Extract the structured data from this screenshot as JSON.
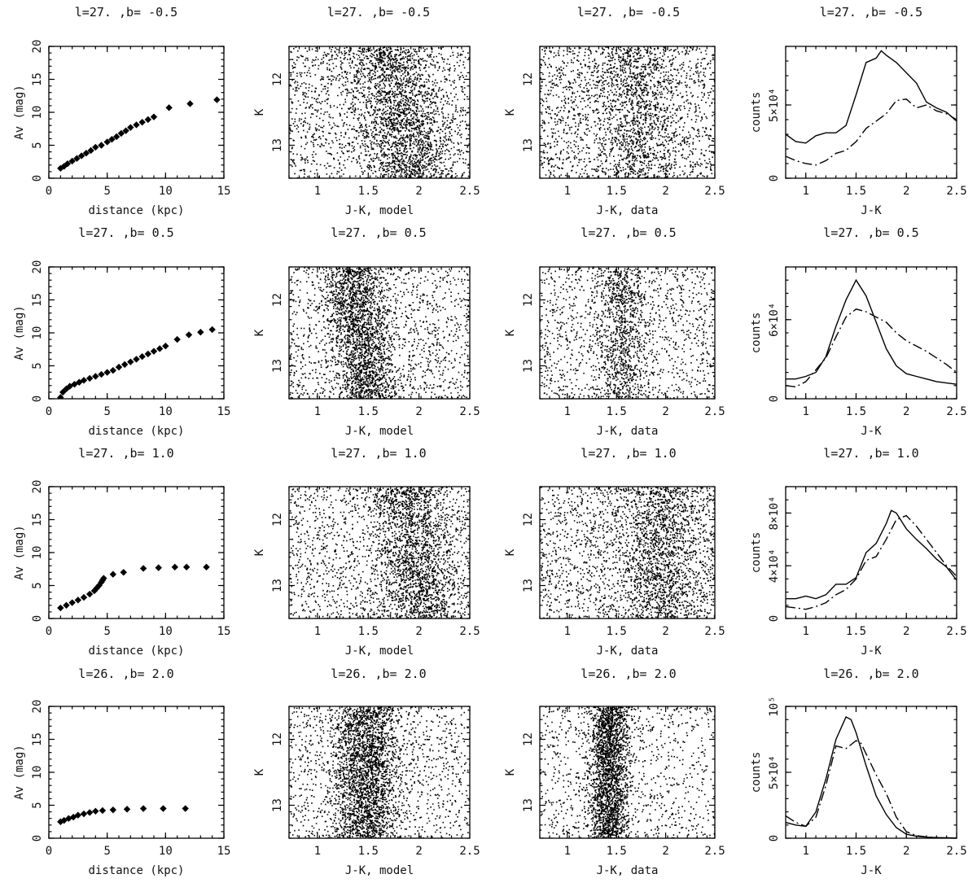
{
  "figure": {
    "rows": [
      {
        "title": "l=27. ,b= -0.5",
        "extinction": {
          "type": "scatter",
          "xlabel": "distance (kpc)",
          "ylabel": "Av (mag)",
          "xlim": [
            0,
            15
          ],
          "ylim": [
            0,
            20
          ],
          "xticks": [
            "0",
            "5",
            "10",
            "15"
          ],
          "yticks": [
            "0",
            "5",
            "10",
            "15",
            "20"
          ],
          "x": [
            1.0,
            1.3,
            1.6,
            2.0,
            2.4,
            2.8,
            3.2,
            3.6,
            4.0,
            4.5,
            5.0,
            5.4,
            5.8,
            6.2,
            6.6,
            7.0,
            7.5,
            8.0,
            8.5,
            9.0,
            10.3,
            12.1,
            14.4
          ],
          "y": [
            1.5,
            1.8,
            2.2,
            2.6,
            3.0,
            3.4,
            3.8,
            4.2,
            4.7,
            5.0,
            5.5,
            5.9,
            6.3,
            6.8,
            7.2,
            7.7,
            8.1,
            8.5,
            8.9,
            9.3,
            10.7,
            11.3,
            11.9
          ]
        },
        "cmd_model": {
          "type": "scatter",
          "xlabel": "J-K, model",
          "ylabel": "K",
          "xlim": [
            0.72,
            2.5
          ],
          "ylim": [
            13.5,
            11.5
          ],
          "xticks": [
            "1",
            "1.5",
            "2",
            "2.5"
          ],
          "yticks": [
            "12",
            "13"
          ],
          "center": 1.8,
          "spread": 0.22,
          "tilt": 0.12,
          "background": 0.45,
          "n": 3200
        },
        "cmd_data": {
          "type": "scatter",
          "xlabel": "J-K, data",
          "ylabel": "K",
          "xlim": [
            0.72,
            2.5
          ],
          "ylim": [
            13.5,
            11.5
          ],
          "xticks": [
            "1",
            "1.5",
            "2",
            "2.5"
          ],
          "yticks": [
            "12",
            "13"
          ],
          "center": 1.7,
          "spread": 0.22,
          "tilt": 0.04,
          "background": 0.6,
          "n": 2500
        },
        "histogram": {
          "type": "line",
          "xlabel": "J-K",
          "ylabel": "counts",
          "xlim": [
            0.8,
            2.5
          ],
          "ylim": [
            0,
            90000
          ],
          "xticks": [
            "1",
            "1.5",
            "2",
            "2.5"
          ],
          "yticks": [
            "0",
            "5×10⁴"
          ],
          "ytick_values": [
            0,
            50000
          ],
          "series": [
            {
              "x": [
                0.8,
                0.9,
                1.0,
                1.1,
                1.2,
                1.3,
                1.4,
                1.5,
                1.6,
                1.7,
                1.75,
                1.8,
                1.9,
                2.0,
                2.1,
                2.2,
                2.3,
                2.4,
                2.5
              ],
              "values": [
                30000,
                25000,
                24000,
                29000,
                31000,
                31000,
                36000,
                57000,
                79000,
                82000,
                87000,
                84000,
                79000,
                72000,
                65000,
                52000,
                48000,
                45000,
                39000
              ]
            },
            {
              "x": [
                0.8,
                0.9,
                1.0,
                1.1,
                1.2,
                1.3,
                1.4,
                1.5,
                1.6,
                1.7,
                1.8,
                1.9,
                2.0,
                2.1,
                2.2,
                2.3,
                2.4,
                2.5
              ],
              "values": [
                15000,
                12000,
                10000,
                9000,
                12000,
                17000,
                19000,
                25000,
                34000,
                39000,
                44000,
                53000,
                54000,
                48000,
                50000,
                46000,
                44000,
                40000
              ]
            }
          ]
        }
      },
      {
        "title": "l=27. ,b=  0.5",
        "extinction": {
          "type": "scatter",
          "xlabel": "distance (kpc)",
          "ylabel": "Av (mag)",
          "xlim": [
            0,
            15
          ],
          "ylim": [
            0,
            20
          ],
          "xticks": [
            "0",
            "5",
            "10",
            "15"
          ],
          "yticks": [
            "0",
            "5",
            "10",
            "15",
            "20"
          ],
          "x": [
            1.0,
            1.2,
            1.5,
            1.8,
            2.2,
            2.6,
            3.0,
            3.5,
            4.0,
            4.5,
            5.0,
            5.5,
            6.0,
            6.5,
            7.0,
            7.5,
            8.0,
            8.5,
            9.0,
            9.5,
            10.0,
            11.0,
            12.0,
            13.0,
            14.0
          ],
          "y": [
            0.2,
            1.0,
            1.5,
            1.9,
            2.2,
            2.5,
            2.8,
            3.1,
            3.4,
            3.7,
            4.0,
            4.3,
            4.8,
            5.2,
            5.6,
            6.0,
            6.4,
            6.8,
            7.2,
            7.6,
            8.0,
            9.0,
            9.7,
            10.1,
            10.5
          ]
        },
        "cmd_model": {
          "type": "scatter",
          "xlabel": "J-K, model",
          "ylabel": "K",
          "xlim": [
            0.72,
            2.5
          ],
          "ylim": [
            13.5,
            11.5
          ],
          "xticks": [
            "1",
            "1.5",
            "2",
            "2.5"
          ],
          "yticks": [
            "12",
            "13"
          ],
          "center": 1.42,
          "spread": 0.15,
          "tilt": 0.1,
          "background": 0.4,
          "n": 3200
        },
        "cmd_data": {
          "type": "scatter",
          "xlabel": "J-K, data",
          "ylabel": "K",
          "xlim": [
            0.72,
            2.5
          ],
          "ylim": [
            13.5,
            11.5
          ],
          "xticks": [
            "1",
            "1.5",
            "2",
            "2.5"
          ],
          "yticks": [
            "12",
            "13"
          ],
          "center": 1.55,
          "spread": 0.14,
          "tilt": 0.0,
          "background": 0.6,
          "n": 2000
        },
        "histogram": {
          "type": "line",
          "xlabel": "J-K",
          "ylabel": "counts",
          "xlim": [
            0.8,
            2.5
          ],
          "ylim": [
            0,
            100000
          ],
          "xticks": [
            "1",
            "1.5",
            "2",
            "2.5"
          ],
          "yticks": [
            "0",
            "6×10⁴"
          ],
          "ytick_values": [
            0,
            60000
          ],
          "series": [
            {
              "x": [
                0.8,
                0.9,
                1.0,
                1.1,
                1.2,
                1.3,
                1.4,
                1.5,
                1.6,
                1.7,
                1.8,
                1.9,
                2.0,
                2.1,
                2.2,
                2.3,
                2.4,
                2.5
              ],
              "values": [
                15000,
                15000,
                17000,
                20000,
                32000,
                55000,
                75000,
                90000,
                78000,
                58000,
                38000,
                25000,
                19000,
                17000,
                15000,
                13000,
                12000,
                11000
              ]
            },
            {
              "x": [
                0.8,
                0.9,
                1.0,
                1.1,
                1.2,
                1.3,
                1.4,
                1.5,
                1.6,
                1.7,
                1.8,
                1.9,
                2.0,
                2.1,
                2.2,
                2.3,
                2.4,
                2.5
              ],
              "values": [
                10000,
                9000,
                13000,
                22000,
                31000,
                47000,
                62000,
                68000,
                66000,
                62000,
                58000,
                50000,
                44000,
                40000,
                36000,
                31000,
                26000,
                20000
              ]
            }
          ]
        }
      },
      {
        "title": "l=27. ,b=  1.0",
        "extinction": {
          "type": "scatter",
          "xlabel": "distance (kpc)",
          "ylabel": "Av (mag)",
          "xlim": [
            0,
            15
          ],
          "ylim": [
            0,
            20
          ],
          "xticks": [
            "0",
            "5",
            "10",
            "15"
          ],
          "yticks": [
            "0",
            "5",
            "10",
            "15",
            "20"
          ],
          "x": [
            1.0,
            1.5,
            2.0,
            2.5,
            3.0,
            3.5,
            3.9,
            4.1,
            4.3,
            4.5,
            4.6,
            4.7,
            5.5,
            6.4,
            8.1,
            9.4,
            10.8,
            11.8,
            13.5
          ],
          "y": [
            1.6,
            2.0,
            2.4,
            2.8,
            3.2,
            3.7,
            4.2,
            4.6,
            5.0,
            5.5,
            5.8,
            6.1,
            6.7,
            7.0,
            7.6,
            7.7,
            7.8,
            7.8,
            7.8
          ]
        },
        "cmd_model": {
          "type": "scatter",
          "xlabel": "J-K, model",
          "ylabel": "K",
          "xlim": [
            0.72,
            2.5
          ],
          "ylim": [
            13.5,
            11.5
          ],
          "xticks": [
            "1",
            "1.5",
            "2",
            "2.5"
          ],
          "yticks": [
            "12",
            "13"
          ],
          "center": 1.95,
          "spread": 0.2,
          "tilt": 0.1,
          "background": 0.45,
          "n": 3000
        },
        "cmd_data": {
          "type": "scatter",
          "xlabel": "J-K, data",
          "ylabel": "K",
          "xlim": [
            0.72,
            2.5
          ],
          "ylim": [
            13.5,
            11.5
          ],
          "xticks": [
            "1",
            "1.5",
            "2",
            "2.5"
          ],
          "yticks": [
            "12",
            "13"
          ],
          "center": 1.95,
          "spread": 0.22,
          "tilt": 0.0,
          "background": 0.55,
          "n": 2800
        },
        "histogram": {
          "type": "line",
          "xlabel": "J-K",
          "ylabel": "counts",
          "xlim": [
            0.8,
            2.5
          ],
          "ylim": [
            0,
            100000
          ],
          "xticks": [
            "1",
            "1.5",
            "2",
            "2.5"
          ],
          "yticks": [
            "0",
            "4×10⁴",
            "8×10⁴"
          ],
          "ytick_values": [
            0,
            40000,
            80000
          ],
          "series": [
            {
              "x": [
                0.8,
                0.9,
                1.0,
                1.1,
                1.2,
                1.3,
                1.4,
                1.5,
                1.6,
                1.7,
                1.8,
                1.85,
                1.9,
                2.0,
                2.1,
                2.2,
                2.3,
                2.4,
                2.5
              ],
              "values": [
                15000,
                15000,
                17000,
                15000,
                18000,
                26000,
                26000,
                31000,
                50000,
                57000,
                72000,
                82000,
                80000,
                68000,
                60000,
                53000,
                45000,
                39000,
                29000
              ]
            },
            {
              "x": [
                0.8,
                0.9,
                1.0,
                1.1,
                1.2,
                1.3,
                1.4,
                1.5,
                1.6,
                1.7,
                1.8,
                1.9,
                2.0,
                2.1,
                2.2,
                2.3,
                2.4,
                2.5
              ],
              "values": [
                9000,
                8000,
                7000,
                9000,
                12000,
                18000,
                22000,
                30000,
                44000,
                47000,
                60000,
                75000,
                78000,
                70000,
                60000,
                50000,
                40000,
                32000
              ]
            }
          ]
        }
      },
      {
        "title": "l=26. ,b=  2.0",
        "extinction": {
          "type": "scatter",
          "xlabel": "distance (kpc)",
          "ylabel": "Av (mag)",
          "xlim": [
            0,
            15
          ],
          "ylim": [
            0,
            20
          ],
          "xticks": [
            "0",
            "5",
            "10",
            "15"
          ],
          "yticks": [
            "0",
            "5",
            "10",
            "15",
            "20"
          ],
          "x": [
            1.0,
            1.3,
            1.7,
            2.1,
            2.5,
            3.0,
            3.5,
            4.0,
            4.6,
            5.5,
            6.7,
            8.1,
            9.8,
            11.7
          ],
          "y": [
            2.5,
            2.7,
            3.0,
            3.2,
            3.5,
            3.7,
            3.9,
            4.1,
            4.2,
            4.3,
            4.4,
            4.5,
            4.5,
            4.5
          ]
        },
        "cmd_model": {
          "type": "scatter",
          "xlabel": "J-K, model",
          "ylabel": "K",
          "xlim": [
            0.72,
            2.5
          ],
          "ylim": [
            13.5,
            11.5
          ],
          "xticks": [
            "1",
            "1.5",
            "2",
            "2.5"
          ],
          "yticks": [
            "12",
            "13"
          ],
          "center": 1.47,
          "spread": 0.17,
          "tilt": 0.0,
          "background": 0.3,
          "n": 3400
        },
        "cmd_data": {
          "type": "scatter",
          "xlabel": "J-K, data",
          "ylabel": "K",
          "xlim": [
            0.72,
            2.5
          ],
          "ylim": [
            13.5,
            11.5
          ],
          "xticks": [
            "1",
            "1.5",
            "2",
            "2.5"
          ],
          "yticks": [
            "12",
            "13"
          ],
          "center": 1.42,
          "spread": 0.1,
          "tilt": 0.0,
          "background": 0.3,
          "n": 3000
        },
        "histogram": {
          "type": "line",
          "xlabel": "J-K",
          "ylabel": "counts",
          "xlim": [
            0.8,
            2.5
          ],
          "ylim": [
            0,
            100000
          ],
          "xticks": [
            "1",
            "1.5",
            "2",
            "2.5"
          ],
          "yticks": [
            "0",
            "5×10⁴",
            "10⁵"
          ],
          "ytick_values": [
            0,
            50000,
            100000
          ],
          "series": [
            {
              "x": [
                0.8,
                0.9,
                1.0,
                1.1,
                1.2,
                1.3,
                1.4,
                1.45,
                1.5,
                1.6,
                1.7,
                1.8,
                1.9,
                2.0,
                2.1,
                2.2,
                2.3,
                2.4,
                2.5
              ],
              "values": [
                12000,
                10000,
                9000,
                20000,
                45000,
                75000,
                92000,
                90000,
                80000,
                55000,
                32000,
                18000,
                8000,
                3000,
                1500,
                800,
                500,
                300,
                200
              ]
            },
            {
              "x": [
                0.8,
                0.9,
                1.0,
                1.1,
                1.2,
                1.3,
                1.4,
                1.5,
                1.55,
                1.6,
                1.7,
                1.8,
                1.9,
                2.0,
                2.1,
                2.2,
                2.3
              ],
              "values": [
                17000,
                12000,
                9000,
                16000,
                40000,
                70000,
                68000,
                74000,
                72000,
                64000,
                48000,
                34000,
                16000,
                5000,
                2000,
                1000,
                500
              ]
            }
          ]
        }
      }
    ]
  }
}
